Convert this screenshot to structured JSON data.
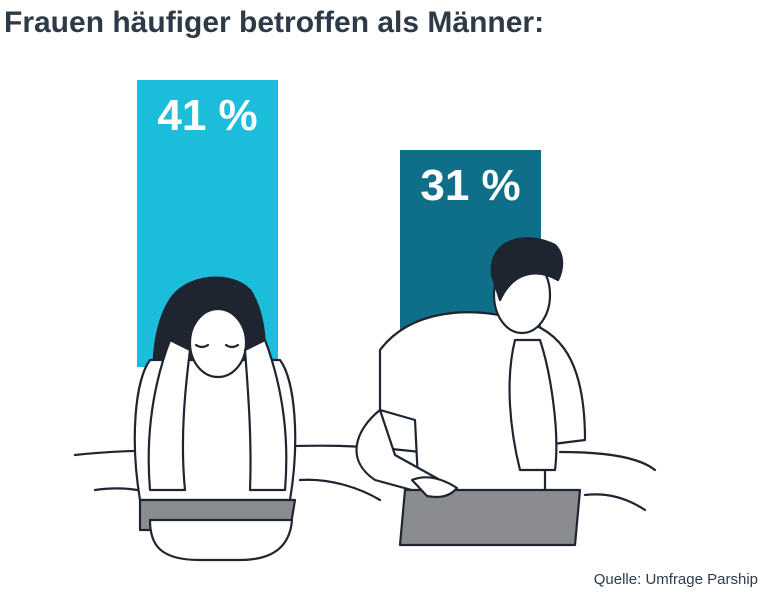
{
  "chart_data": {
    "type": "bar",
    "title": "Frauen häufiger betroffen als Männer:",
    "categories": [
      null,
      null
    ],
    "values": [
      41,
      31
    ],
    "value_labels": [
      "41 %",
      "31 %"
    ],
    "colors": [
      "#1bbdda",
      "#0f6e88"
    ],
    "source": "Quelle: Umfrage Parship"
  }
}
